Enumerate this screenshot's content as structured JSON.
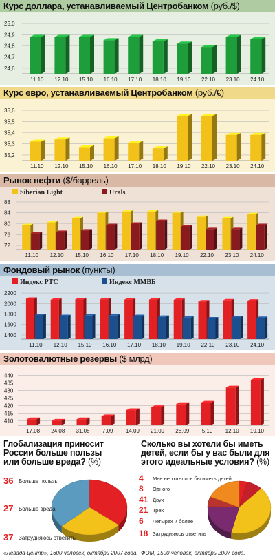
{
  "colors": {
    "green": "#1e9e3a",
    "green_dark": "#136b26",
    "green_light": "#6cc072",
    "yellow": "#f2c21a",
    "yellow_dark": "#c7951a",
    "yellow_light": "#fbe27a",
    "maroon": "#8a1a1e",
    "maroon_dark": "#5a0f12",
    "red": "#e32124",
    "red_dark": "#a01216",
    "blue": "#1c4f8e",
    "blue_dark": "#0f2f58",
    "bg1": "#e7efe2",
    "bg2": "#fbf1d3",
    "bg3": "#efe1d6",
    "bg4": "#d6e1ea",
    "bg5": "#fbeee8",
    "header1": "#aecba2",
    "header2": "#f1d98a",
    "header3": "#d9b9a6",
    "header4": "#a8bfd3",
    "header5": "#efc7bb"
  },
  "panels": {
    "usd": {
      "title": "Курс доллара, устанавливаемый Центробанком",
      "unit": "(руб./$)"
    },
    "eur": {
      "title": "Курс евро, устанавливаемый Центробанком",
      "unit": "(руб./€)"
    },
    "oil": {
      "title": "Рынок нефти",
      "unit": "($/баррель)"
    },
    "stock": {
      "title": "Фондовый рынок",
      "unit": "(пункты)"
    },
    "reserves": {
      "title": "Золотовалютные резервы",
      "unit": "($ млрд)"
    }
  },
  "chart_data": [
    {
      "type": "bar",
      "title": "Курс доллара, устанавливаемый Центробанком (руб./$)",
      "categories": [
        "11.10",
        "12.10",
        "15.10",
        "16.10",
        "17.10",
        "18.10",
        "19.10",
        "22.10",
        "23.10",
        "24.10"
      ],
      "values": [
        24.88,
        24.88,
        24.88,
        24.85,
        24.88,
        24.84,
        24.82,
        24.79,
        24.88,
        24.86
      ],
      "yticks": [
        "24,6",
        "24,7",
        "24,8",
        "24,9",
        "25,0"
      ],
      "ylim": [
        24.55,
        25.05
      ]
    },
    {
      "type": "bar",
      "title": "Курс евро, устанавливаемый Центробанком (руб./€)",
      "categories": [
        "11.10",
        "12.10",
        "15.10",
        "16.10",
        "17.10",
        "18.10",
        "19.10",
        "22.10",
        "23.10",
        "24.10"
      ],
      "values": [
        35.32,
        35.34,
        35.27,
        35.35,
        35.31,
        35.26,
        35.55,
        35.55,
        35.38,
        35.38
      ],
      "yticks": [
        "35,2",
        "35,3",
        "35,4",
        "35,5",
        "35,6"
      ],
      "ylim": [
        35.15,
        35.65
      ]
    },
    {
      "type": "bar",
      "title": "Рынок нефти ($/баррель)",
      "categories": [
        "11.10",
        "12.10",
        "15.10",
        "16.10",
        "17.10",
        "18.10",
        "19.10",
        "22.10",
        "23.10",
        "24.10"
      ],
      "series": [
        {
          "name": "Siberian Light",
          "values": [
            79.5,
            80.5,
            82,
            84,
            84.5,
            84.5,
            84,
            82.5,
            82,
            83.5
          ]
        },
        {
          "name": "Urals",
          "values": [
            76.5,
            77,
            77.5,
            79.5,
            80,
            81,
            79,
            78,
            78,
            79.5
          ]
        }
      ],
      "yticks": [
        "72",
        "76",
        "80",
        "84",
        "88"
      ],
      "ylim": [
        70.5,
        89.5
      ]
    },
    {
      "type": "bar",
      "title": "Фондовый рынок (пункты)",
      "categories": [
        "11.10",
        "12.10",
        "15.10",
        "16.10",
        "17.10",
        "18.10",
        "19.10",
        "22.10",
        "23.10",
        "24.10"
      ],
      "series": [
        {
          "name": "Индекс РТС",
          "values": [
            2090,
            2070,
            2080,
            2080,
            2075,
            2075,
            2070,
            2040,
            2060,
            2055
          ]
        },
        {
          "name": "Индекс ММВБ",
          "values": [
            1780,
            1760,
            1770,
            1770,
            1760,
            1745,
            1730,
            1715,
            1735,
            1725
          ]
        }
      ],
      "yticks": [
        "1400",
        "1600",
        "1800",
        "2000",
        "2200"
      ],
      "ylim": [
        1320,
        2280
      ]
    },
    {
      "type": "bar",
      "title": "Золотовалютные резервы ($ млрд)",
      "categories": [
        "17.08",
        "24.08",
        "31.08",
        "7.09",
        "14.09",
        "21.09",
        "28.09",
        "5.10",
        "12.10",
        "19.10"
      ],
      "values": [
        411,
        410,
        411,
        413,
        417,
        419,
        421,
        422,
        432,
        437
      ],
      "yticks": [
        "410",
        "415",
        "420",
        "425",
        "430",
        "435",
        "440"
      ],
      "ylim": [
        407,
        443
      ]
    },
    {
      "type": "pie",
      "title": "Глобализация приносит России больше пользы или больше вреда?",
      "unit": "(%)",
      "values": [
        36,
        27,
        37
      ],
      "labels": [
        "Больше пользы",
        "Больше вреда",
        "Затрудняюсь ответить"
      ],
      "colors": [
        "#e32124",
        "#f2c21a",
        "#5a9bbf"
      ]
    },
    {
      "type": "pie",
      "title": "Сколько вы хотели бы иметь детей, если бы у вас были для этого идеальные условия?",
      "unit": "(%)",
      "values": [
        4,
        8,
        41,
        21,
        6,
        18
      ],
      "labels": [
        "Мне не хотелось бы иметь детей",
        "Одного",
        "Двух",
        "Трех",
        "Четырех и более",
        "Затрудняюсь ответить"
      ],
      "colors": [
        "#e32124",
        "#c41f2a",
        "#f2c21a",
        "#7a2a6e",
        "#b8342d",
        "#f08a1e"
      ]
    }
  ],
  "survey1": {
    "title_lines": [
      "Глобализация приносит",
      "России больше пользы",
      "или больше вреда?"
    ],
    "unit": "(%)",
    "source": "«Левада-центр», 1600 человек, октябрь 2007 года."
  },
  "survey2": {
    "title_lines": [
      "Сколько вы хотели бы иметь",
      "детей, если бы у вас были для",
      "этого идеальные условия?"
    ],
    "unit": "(%)",
    "source": "ФОМ, 1500 человек, октябрь 2007 года."
  }
}
